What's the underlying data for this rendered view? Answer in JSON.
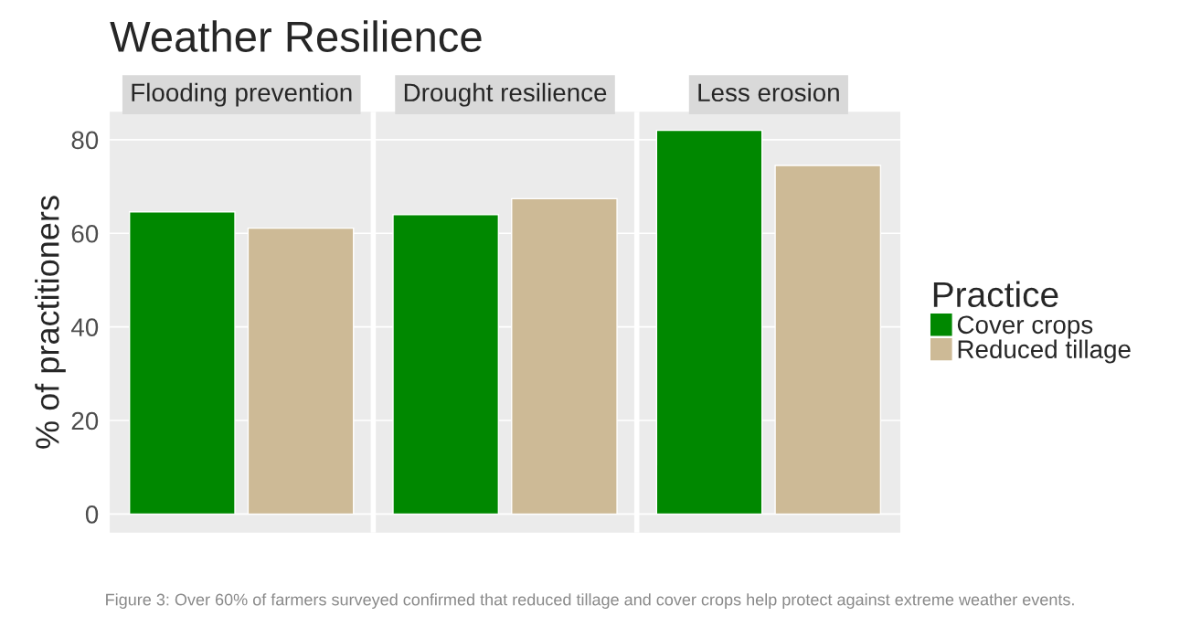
{
  "chart_data": {
    "type": "bar",
    "title": "Weather Resilience",
    "ylabel": "% of practitioners",
    "legend_title": "Practice",
    "categories": [
      "Flooding prevention",
      "Drought resilience",
      "Less erosion"
    ],
    "series": [
      {
        "name": "Cover crops",
        "color": "#008800",
        "values": [
          64.6,
          64.0,
          82.0
        ]
      },
      {
        "name": "Reduced tillage",
        "color": "#cdba96",
        "values": [
          61.1,
          67.4,
          74.5
        ]
      }
    ],
    "ylim": [
      -4,
      86
    ],
    "yticks": [
      0,
      20,
      40,
      60,
      80
    ],
    "grid": "y",
    "legend": "right",
    "annotations": [
      "Figure 3: Over 60% of farmers surveyed confirmed that reduced tillage and cover crops help protect against extreme weather events."
    ]
  }
}
